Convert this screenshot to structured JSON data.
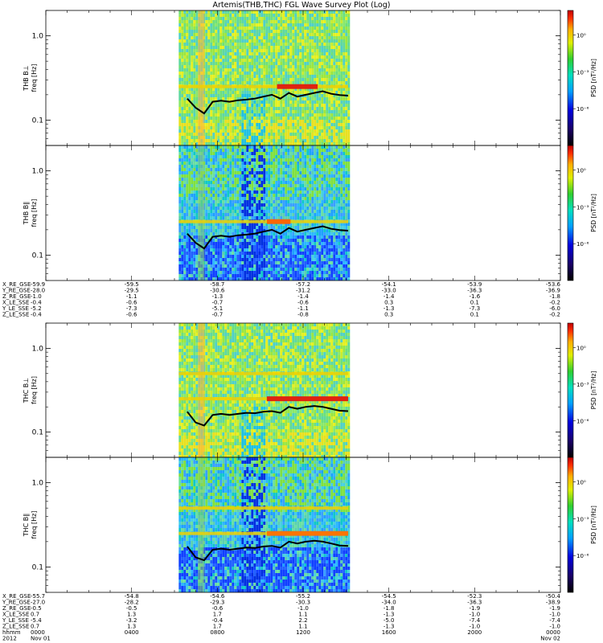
{
  "chart_data": {
    "type": "heatmap",
    "title": "Artemis(THB,THC) FGL Wave Survey Plot (Log)",
    "panels": [
      {
        "probe": "THB",
        "component": "B⊥",
        "label": "THB B⊥",
        "ylabel": "freq [Hz]",
        "colorbar_label": "PSD [nT²/Hz]",
        "color_scheme": "perp",
        "band_freqs": [
          0.25
        ],
        "low_band": "yellow",
        "fce_curve": [
          0.18,
          0.14,
          0.12,
          0.165,
          0.17,
          0.165,
          0.172,
          0.175,
          0.18,
          0.19,
          0.2,
          0.18,
          0.21,
          0.19,
          0.2,
          0.21,
          0.22,
          0.205,
          0.198,
          0.195
        ],
        "hot_band": {
          "start": 0.58,
          "end": 0.82,
          "freq": 0.25,
          "color": "#e01010"
        }
      },
      {
        "probe": "THB",
        "component": "B∥",
        "label": "THB B∥",
        "ylabel": "freq [Hz]",
        "colorbar_label": "PSD [nT²/Hz]",
        "color_scheme": "par",
        "band_freqs": [
          0.25
        ],
        "low_band": "blue",
        "fce_curve": [
          0.18,
          0.14,
          0.12,
          0.165,
          0.17,
          0.165,
          0.172,
          0.175,
          0.18,
          0.19,
          0.2,
          0.18,
          0.21,
          0.19,
          0.2,
          0.21,
          0.22,
          0.205,
          0.198,
          0.195
        ],
        "hot_band": {
          "start": 0.52,
          "end": 0.66,
          "freq": 0.25,
          "color": "#ff5a00"
        }
      },
      {
        "probe": "THC",
        "component": "B⊥",
        "label": "THC B⊥",
        "ylabel": "freq [Hz]",
        "colorbar_label": "PSD [nT²/Hz]",
        "color_scheme": "perp",
        "band_freqs": [
          0.25,
          0.5
        ],
        "low_band": "yellow",
        "fce_curve": [
          0.175,
          0.13,
          0.12,
          0.16,
          0.165,
          0.16,
          0.165,
          0.17,
          0.168,
          0.175,
          0.178,
          0.17,
          0.2,
          0.19,
          0.2,
          0.205,
          0.2,
          0.19,
          0.18,
          0.178
        ],
        "hot_band": {
          "start": 0.52,
          "end": 1.0,
          "freq": 0.25,
          "color": "#e01010"
        }
      },
      {
        "probe": "THC",
        "component": "B∥",
        "label": "THC B∥",
        "ylabel": "freq [Hz]",
        "colorbar_label": "PSD [nT²/Hz]",
        "color_scheme": "par",
        "band_freqs": [
          0.25,
          0.5
        ],
        "low_band": "blue",
        "fce_curve": [
          0.175,
          0.13,
          0.12,
          0.16,
          0.165,
          0.16,
          0.165,
          0.17,
          0.168,
          0.175,
          0.178,
          0.17,
          0.2,
          0.19,
          0.2,
          0.205,
          0.2,
          0.19,
          0.18,
          0.178
        ],
        "hot_band": {
          "start": 0.52,
          "end": 1.0,
          "freq": 0.25,
          "color": "#ff6a00"
        }
      }
    ],
    "y_axis": {
      "scale": "log",
      "range": [
        0.05,
        2.0
      ],
      "ticks": [
        {
          "value": 1.0,
          "label": "1.0"
        },
        {
          "value": 0.1,
          "label": "0.1"
        }
      ]
    },
    "colorbar": {
      "scale": "log",
      "range": [
        1e-09,
        100.0
      ],
      "ticks": [
        {
          "value": 1,
          "label": "10⁰"
        },
        {
          "value": 0.001,
          "label": "10⁻³"
        },
        {
          "value": 1e-06,
          "label": "10⁻⁶"
        }
      ]
    },
    "data_window_hours": [
      6.2,
      14.1
    ],
    "x_axis": {
      "range_hours": [
        0,
        24
      ],
      "tick_hours": [
        0,
        4,
        8,
        12,
        16,
        20,
        24
      ],
      "hhmm": [
        "0000",
        "0400",
        "0800",
        "1200",
        "1600",
        "2000",
        "0000"
      ],
      "date_labels": [
        "Nov 01",
        "",
        "",
        "",
        "",
        "",
        "Nov 02"
      ]
    },
    "thb_ephemeris": {
      "labels": [
        "X_RE_GSE",
        "Y_RE_GSE",
        "Z_RE_GSE",
        "X_LE_SSE",
        "Y_LE_SSE",
        "Z_LE_SSE"
      ],
      "rows": [
        [
          "-59.9",
          "-59.5",
          "-58.7",
          "-57.2",
          "-54.1",
          "-53.9",
          "-53.6"
        ],
        [
          "-28.0",
          "-29.5",
          "-30.6",
          "-31.2",
          "-33.0",
          "-36.3",
          "-36.9"
        ],
        [
          "-1.0",
          "-1.1",
          "-1.3",
          "-1.4",
          "-1.4",
          "-1.6",
          "-1.8"
        ],
        [
          "-0.4",
          "-0.6",
          "-0.7",
          "-0.6",
          "0.3",
          "0.1",
          "-0.2"
        ],
        [
          "-5.2",
          "-7.3",
          "-5.1",
          "-1.1",
          "-1.3",
          "-7.3",
          "-6.0"
        ],
        [
          "-0.4",
          "-0.6",
          "-0.7",
          "-0.8",
          "0.3",
          "0.1",
          "-0.2"
        ]
      ]
    },
    "thc_ephemeris": {
      "labels": [
        "X_RE_GSE",
        "Y_RE_GSE",
        "Z_RE_GSE",
        "X_LE_SSE",
        "Y_LE_SSE",
        "Z_LE_SSE"
      ],
      "rows": [
        [
          "-55.7",
          "-54.8",
          "-54.6",
          "-55.2",
          "-54.5",
          "-52.3",
          "-50.4"
        ],
        [
          "-27.0",
          "-28.2",
          "-29.3",
          "-30.3",
          "-34.0",
          "-36.3",
          "-38.9"
        ],
        [
          "-0.5",
          "-0.5",
          "-0.6",
          "-1.0",
          "-1.8",
          "-1.9",
          "-1.9"
        ],
        [
          "0.7",
          "1.3",
          "1.7",
          "1.1",
          "-1.3",
          "-1.0",
          "-1.0"
        ],
        [
          "-5.4",
          "-3.2",
          "-0.4",
          "2.2",
          "-5.0",
          "-7.4",
          "-7.4"
        ],
        [
          "0.7",
          "1.3",
          "1.7",
          "1.1",
          "-1.3",
          "-1.0",
          "-1.0"
        ]
      ]
    },
    "time_row_label": "hhmm",
    "year_row_label": "2012"
  },
  "colors": {
    "fce_line": "#000000",
    "background": "#ffffff"
  }
}
